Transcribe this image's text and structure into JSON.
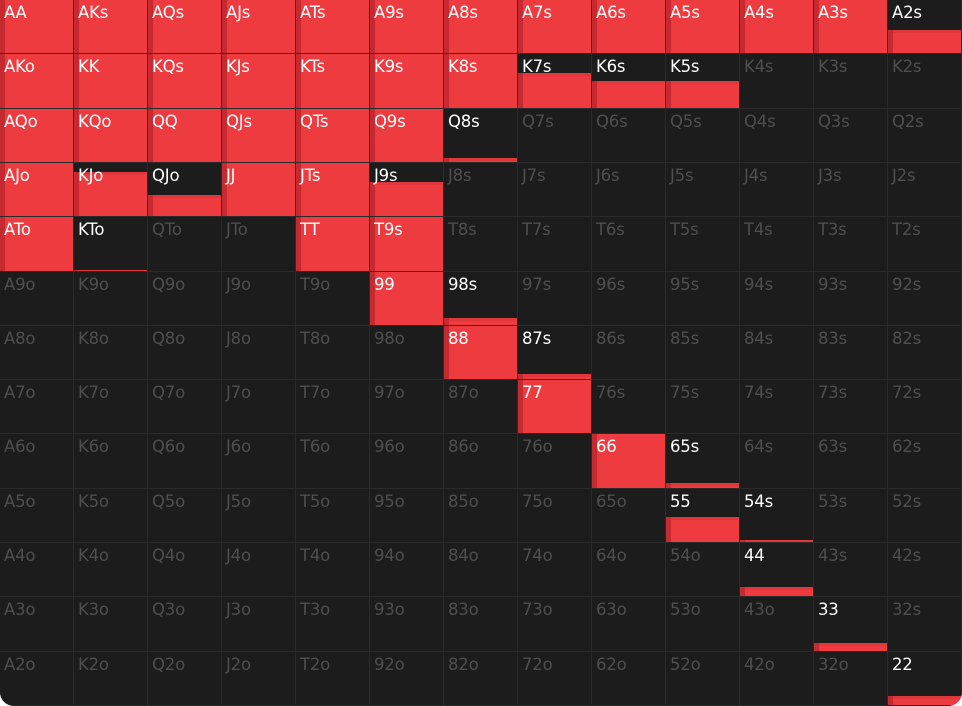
{
  "colors": {
    "background": "#1c1c1c",
    "fill": "#ee3b40",
    "fill_edge": "#c52a30",
    "active_text": "#ffffff",
    "inactive_text": "#4e4e4e"
  },
  "rows": [
    [
      {
        "hand": "AA",
        "freq": 1
      },
      {
        "hand": "AKs",
        "freq": 1
      },
      {
        "hand": "AQs",
        "freq": 1
      },
      {
        "hand": "AJs",
        "freq": 1
      },
      {
        "hand": "ATs",
        "freq": 1
      },
      {
        "hand": "A9s",
        "freq": 1
      },
      {
        "hand": "A8s",
        "freq": 1
      },
      {
        "hand": "A7s",
        "freq": 1
      },
      {
        "hand": "A6s",
        "freq": 1
      },
      {
        "hand": "A5s",
        "freq": 1
      },
      {
        "hand": "A4s",
        "freq": 1
      },
      {
        "hand": "A3s",
        "freq": 1
      },
      {
        "hand": "A2s",
        "freq": 0.43
      }
    ],
    [
      {
        "hand": "AKo",
        "freq": 1
      },
      {
        "hand": "KK",
        "freq": 1
      },
      {
        "hand": "KQs",
        "freq": 1
      },
      {
        "hand": "KJs",
        "freq": 1
      },
      {
        "hand": "KTs",
        "freq": 1
      },
      {
        "hand": "K9s",
        "freq": 1
      },
      {
        "hand": "K8s",
        "freq": 1
      },
      {
        "hand": "K7s",
        "freq": 0.65
      },
      {
        "hand": "K6s",
        "freq": 0.5
      },
      {
        "hand": "K5s",
        "freq": 0.5
      },
      {
        "hand": "K4s",
        "freq": 0
      },
      {
        "hand": "K3s",
        "freq": 0
      },
      {
        "hand": "K2s",
        "freq": 0
      }
    ],
    [
      {
        "hand": "AQo",
        "freq": 1
      },
      {
        "hand": "KQo",
        "freq": 1
      },
      {
        "hand": "QQ",
        "freq": 1
      },
      {
        "hand": "QJs",
        "freq": 1
      },
      {
        "hand": "QTs",
        "freq": 1
      },
      {
        "hand": "Q9s",
        "freq": 1
      },
      {
        "hand": "Q8s",
        "freq": 0.07
      },
      {
        "hand": "Q7s",
        "freq": 0
      },
      {
        "hand": "Q6s",
        "freq": 0
      },
      {
        "hand": "Q5s",
        "freq": 0
      },
      {
        "hand": "Q4s",
        "freq": 0
      },
      {
        "hand": "Q3s",
        "freq": 0
      },
      {
        "hand": "Q2s",
        "freq": 0
      }
    ],
    [
      {
        "hand": "AJo",
        "freq": 1
      },
      {
        "hand": "KJo",
        "freq": 0.83
      },
      {
        "hand": "QJo",
        "freq": 0.39
      },
      {
        "hand": "JJ",
        "freq": 1
      },
      {
        "hand": "JTs",
        "freq": 1
      },
      {
        "hand": "J9s",
        "freq": 0.65
      },
      {
        "hand": "J8s",
        "freq": 0
      },
      {
        "hand": "J7s",
        "freq": 0
      },
      {
        "hand": "J6s",
        "freq": 0
      },
      {
        "hand": "J5s",
        "freq": 0
      },
      {
        "hand": "J4s",
        "freq": 0
      },
      {
        "hand": "J3s",
        "freq": 0
      },
      {
        "hand": "J2s",
        "freq": 0
      }
    ],
    [
      {
        "hand": "ATo",
        "freq": 1
      },
      {
        "hand": "KTo",
        "freq": 0.02
      },
      {
        "hand": "QTo",
        "freq": 0
      },
      {
        "hand": "JTo",
        "freq": 0
      },
      {
        "hand": "TT",
        "freq": 1
      },
      {
        "hand": "T9s",
        "freq": 1
      },
      {
        "hand": "T8s",
        "freq": 0
      },
      {
        "hand": "T7s",
        "freq": 0
      },
      {
        "hand": "T6s",
        "freq": 0
      },
      {
        "hand": "T5s",
        "freq": 0
      },
      {
        "hand": "T4s",
        "freq": 0
      },
      {
        "hand": "T3s",
        "freq": 0
      },
      {
        "hand": "T2s",
        "freq": 0
      }
    ],
    [
      {
        "hand": "A9o",
        "freq": 0
      },
      {
        "hand": "K9o",
        "freq": 0
      },
      {
        "hand": "Q9o",
        "freq": 0
      },
      {
        "hand": "J9o",
        "freq": 0
      },
      {
        "hand": "T9o",
        "freq": 0
      },
      {
        "hand": "99",
        "freq": 1
      },
      {
        "hand": "98s",
        "freq": 0.13
      },
      {
        "hand": "97s",
        "freq": 0
      },
      {
        "hand": "96s",
        "freq": 0
      },
      {
        "hand": "95s",
        "freq": 0
      },
      {
        "hand": "94s",
        "freq": 0
      },
      {
        "hand": "93s",
        "freq": 0
      },
      {
        "hand": "92s",
        "freq": 0
      }
    ],
    [
      {
        "hand": "A8o",
        "freq": 0
      },
      {
        "hand": "K8o",
        "freq": 0
      },
      {
        "hand": "Q8o",
        "freq": 0
      },
      {
        "hand": "J8o",
        "freq": 0
      },
      {
        "hand": "T8o",
        "freq": 0
      },
      {
        "hand": "98o",
        "freq": 0
      },
      {
        "hand": "88",
        "freq": 1
      },
      {
        "hand": "87s",
        "freq": 0.09
      },
      {
        "hand": "86s",
        "freq": 0
      },
      {
        "hand": "85s",
        "freq": 0
      },
      {
        "hand": "84s",
        "freq": 0
      },
      {
        "hand": "83s",
        "freq": 0
      },
      {
        "hand": "82s",
        "freq": 0
      }
    ],
    [
      {
        "hand": "A7o",
        "freq": 0
      },
      {
        "hand": "K7o",
        "freq": 0
      },
      {
        "hand": "Q7o",
        "freq": 0
      },
      {
        "hand": "J7o",
        "freq": 0
      },
      {
        "hand": "T7o",
        "freq": 0
      },
      {
        "hand": "97o",
        "freq": 0
      },
      {
        "hand": "87o",
        "freq": 0
      },
      {
        "hand": "77",
        "freq": 1
      },
      {
        "hand": "76s",
        "freq": 0
      },
      {
        "hand": "75s",
        "freq": 0
      },
      {
        "hand": "74s",
        "freq": 0
      },
      {
        "hand": "73s",
        "freq": 0
      },
      {
        "hand": "72s",
        "freq": 0
      }
    ],
    [
      {
        "hand": "A6o",
        "freq": 0
      },
      {
        "hand": "K6o",
        "freq": 0
      },
      {
        "hand": "Q6o",
        "freq": 0
      },
      {
        "hand": "J6o",
        "freq": 0
      },
      {
        "hand": "T6o",
        "freq": 0
      },
      {
        "hand": "96o",
        "freq": 0
      },
      {
        "hand": "86o",
        "freq": 0
      },
      {
        "hand": "76o",
        "freq": 0
      },
      {
        "hand": "66",
        "freq": 1
      },
      {
        "hand": "65s",
        "freq": 0.09
      },
      {
        "hand": "64s",
        "freq": 0
      },
      {
        "hand": "63s",
        "freq": 0
      },
      {
        "hand": "62s",
        "freq": 0
      }
    ],
    [
      {
        "hand": "A5o",
        "freq": 0
      },
      {
        "hand": "K5o",
        "freq": 0
      },
      {
        "hand": "Q5o",
        "freq": 0
      },
      {
        "hand": "J5o",
        "freq": 0
      },
      {
        "hand": "T5o",
        "freq": 0
      },
      {
        "hand": "95o",
        "freq": 0
      },
      {
        "hand": "85o",
        "freq": 0
      },
      {
        "hand": "75o",
        "freq": 0
      },
      {
        "hand": "65o",
        "freq": 0
      },
      {
        "hand": "55",
        "freq": 0.48
      },
      {
        "hand": "54s",
        "freq": 0.04
      },
      {
        "hand": "53s",
        "freq": 0
      },
      {
        "hand": "52s",
        "freq": 0
      }
    ],
    [
      {
        "hand": "A4o",
        "freq": 0
      },
      {
        "hand": "K4o",
        "freq": 0
      },
      {
        "hand": "Q4o",
        "freq": 0
      },
      {
        "hand": "J4o",
        "freq": 0
      },
      {
        "hand": "T4o",
        "freq": 0
      },
      {
        "hand": "94o",
        "freq": 0
      },
      {
        "hand": "84o",
        "freq": 0
      },
      {
        "hand": "74o",
        "freq": 0
      },
      {
        "hand": "64o",
        "freq": 0
      },
      {
        "hand": "54o",
        "freq": 0
      },
      {
        "hand": "44",
        "freq": 0.17
      },
      {
        "hand": "43s",
        "freq": 0
      },
      {
        "hand": "42s",
        "freq": 0
      }
    ],
    [
      {
        "hand": "A3o",
        "freq": 0
      },
      {
        "hand": "K3o",
        "freq": 0
      },
      {
        "hand": "Q3o",
        "freq": 0
      },
      {
        "hand": "J3o",
        "freq": 0
      },
      {
        "hand": "T3o",
        "freq": 0
      },
      {
        "hand": "93o",
        "freq": 0
      },
      {
        "hand": "83o",
        "freq": 0
      },
      {
        "hand": "73o",
        "freq": 0
      },
      {
        "hand": "63o",
        "freq": 0
      },
      {
        "hand": "53o",
        "freq": 0
      },
      {
        "hand": "43o",
        "freq": 0
      },
      {
        "hand": "33",
        "freq": 0.15
      },
      {
        "hand": "32s",
        "freq": 0
      }
    ],
    [
      {
        "hand": "A2o",
        "freq": 0
      },
      {
        "hand": "K2o",
        "freq": 0
      },
      {
        "hand": "Q2o",
        "freq": 0
      },
      {
        "hand": "J2o",
        "freq": 0
      },
      {
        "hand": "T2o",
        "freq": 0
      },
      {
        "hand": "92o",
        "freq": 0
      },
      {
        "hand": "82o",
        "freq": 0
      },
      {
        "hand": "72o",
        "freq": 0
      },
      {
        "hand": "62o",
        "freq": 0
      },
      {
        "hand": "52o",
        "freq": 0
      },
      {
        "hand": "42o",
        "freq": 0
      },
      {
        "hand": "32o",
        "freq": 0
      },
      {
        "hand": "22",
        "freq": 0.17
      }
    ]
  ]
}
